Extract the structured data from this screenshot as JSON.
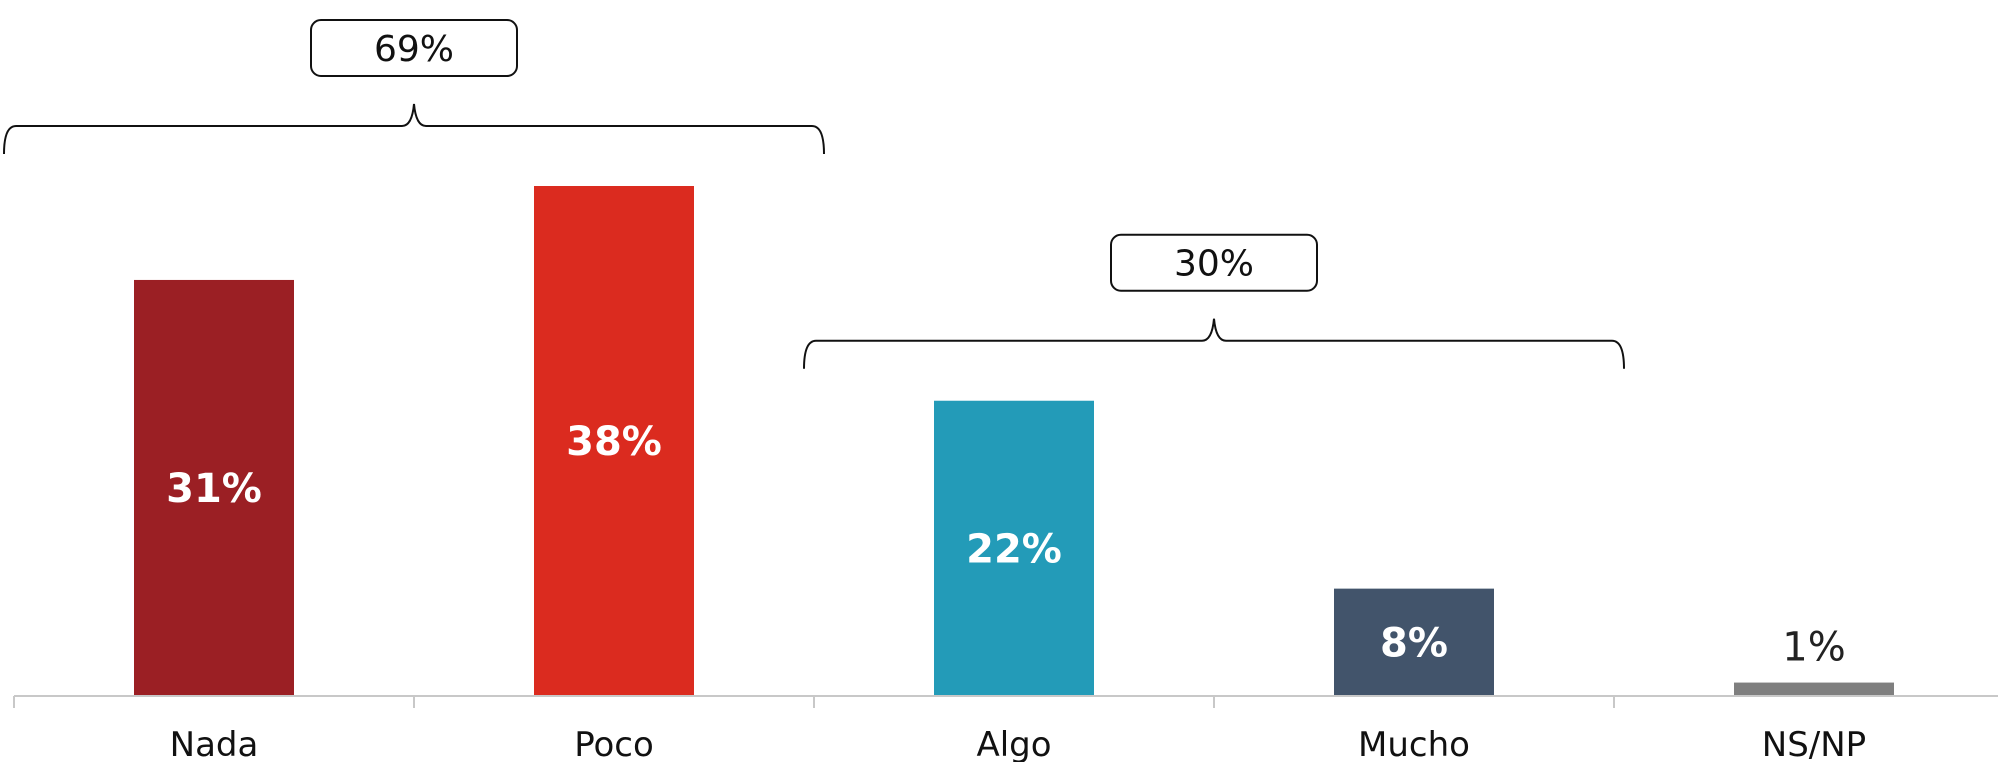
{
  "chart_data": {
    "type": "bar",
    "categories": [
      "Nada",
      "Poco",
      "Algo",
      "Mucho",
      "NS/NP"
    ],
    "values": [
      31,
      38,
      22,
      8,
      1
    ],
    "value_labels": [
      "31%",
      "38%",
      "22%",
      "8%",
      "1%"
    ],
    "colors": [
      "#9b1f24",
      "#db2b1f",
      "#239bb8",
      "#42546b",
      "#7f7f7f"
    ],
    "ylim": [
      0,
      38
    ],
    "grid": false,
    "legend": "none",
    "groups": [
      {
        "label": "69%",
        "from": 0,
        "to": 1
      },
      {
        "label": "30%",
        "from": 2,
        "to": 3
      }
    ]
  }
}
